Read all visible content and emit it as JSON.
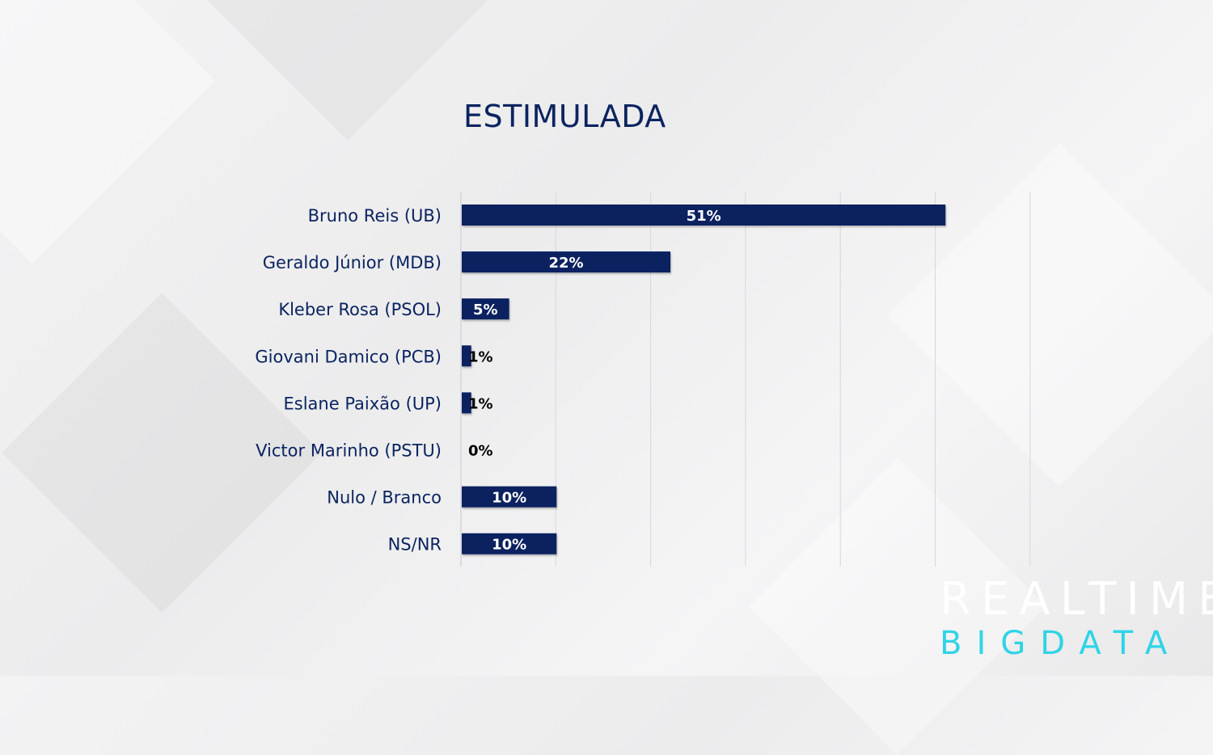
{
  "colors": {
    "bar": "#0b2160",
    "title": "#0b2460",
    "label": "#0b2460",
    "logo_top": "#ffffff",
    "logo_bottom": "#2fd4e6"
  },
  "logo": {
    "line1": "REALTIME",
    "line2": "BIGDATA"
  },
  "chart_data": {
    "type": "bar",
    "orientation": "horizontal",
    "title": "ESTIMULADA",
    "categories": [
      "Bruno Reis (UB)",
      "Geraldo Júnior (MDB)",
      "Kleber Rosa (PSOL)",
      "Giovani Damico (PCB)",
      "Eslane Paixão (UP)",
      "Victor Marinho (PSTU)",
      "Nulo / Branco",
      "NS/NR"
    ],
    "values": [
      51,
      22,
      5,
      1,
      1,
      0,
      10,
      10
    ],
    "value_labels": [
      "51%",
      "22%",
      "5%",
      "1%",
      "1%",
      "0%",
      "10%",
      "10%"
    ],
    "xlim": [
      0,
      60
    ],
    "grid": true,
    "legend": "none"
  }
}
